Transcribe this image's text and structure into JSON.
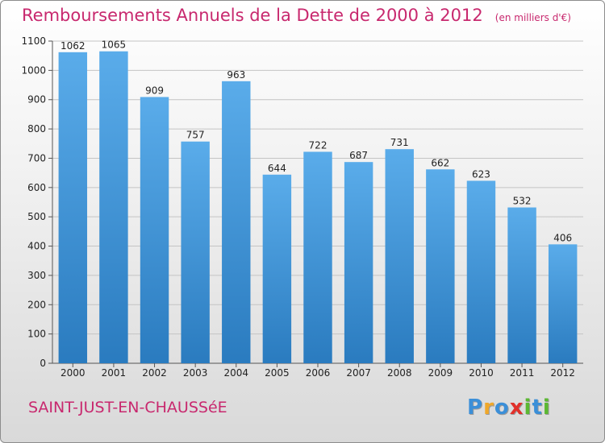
{
  "header": {
    "title": "Remboursements Annuels de la Dette de 2000 à 2012",
    "unit_note": "(en milliers d'€)"
  },
  "footer": {
    "city": "SAINT-JUST-EN-CHAUSSéE",
    "logo_letters": [
      {
        "ch": "P",
        "color": "#3b8fd8"
      },
      {
        "ch": "r",
        "color": "#f0a82a"
      },
      {
        "ch": "o",
        "color": "#3b8fd8"
      },
      {
        "ch": "x",
        "color": "#e1302a"
      },
      {
        "ch": "i",
        "color": "#5bb832"
      },
      {
        "ch": "t",
        "color": "#3b8fd8"
      },
      {
        "ch": "i",
        "color": "#5bb832"
      }
    ]
  },
  "chart_data": {
    "type": "bar",
    "title": "Remboursements Annuels de la Dette de 2000 à 2012",
    "unit": "(en milliers d'€)",
    "categories": [
      "2000",
      "2001",
      "2002",
      "2003",
      "2004",
      "2005",
      "2006",
      "2007",
      "2008",
      "2009",
      "2010",
      "2011",
      "2012"
    ],
    "values": [
      1062,
      1065,
      909,
      757,
      963,
      644,
      722,
      687,
      731,
      662,
      623,
      532,
      406
    ],
    "ylim": [
      0,
      1100
    ],
    "yticks": [
      0,
      100,
      200,
      300,
      400,
      500,
      600,
      700,
      800,
      900,
      1000,
      1100
    ],
    "grid": true,
    "bar_color_top": "#5aacea",
    "bar_color_bottom": "#2a7bbf"
  }
}
